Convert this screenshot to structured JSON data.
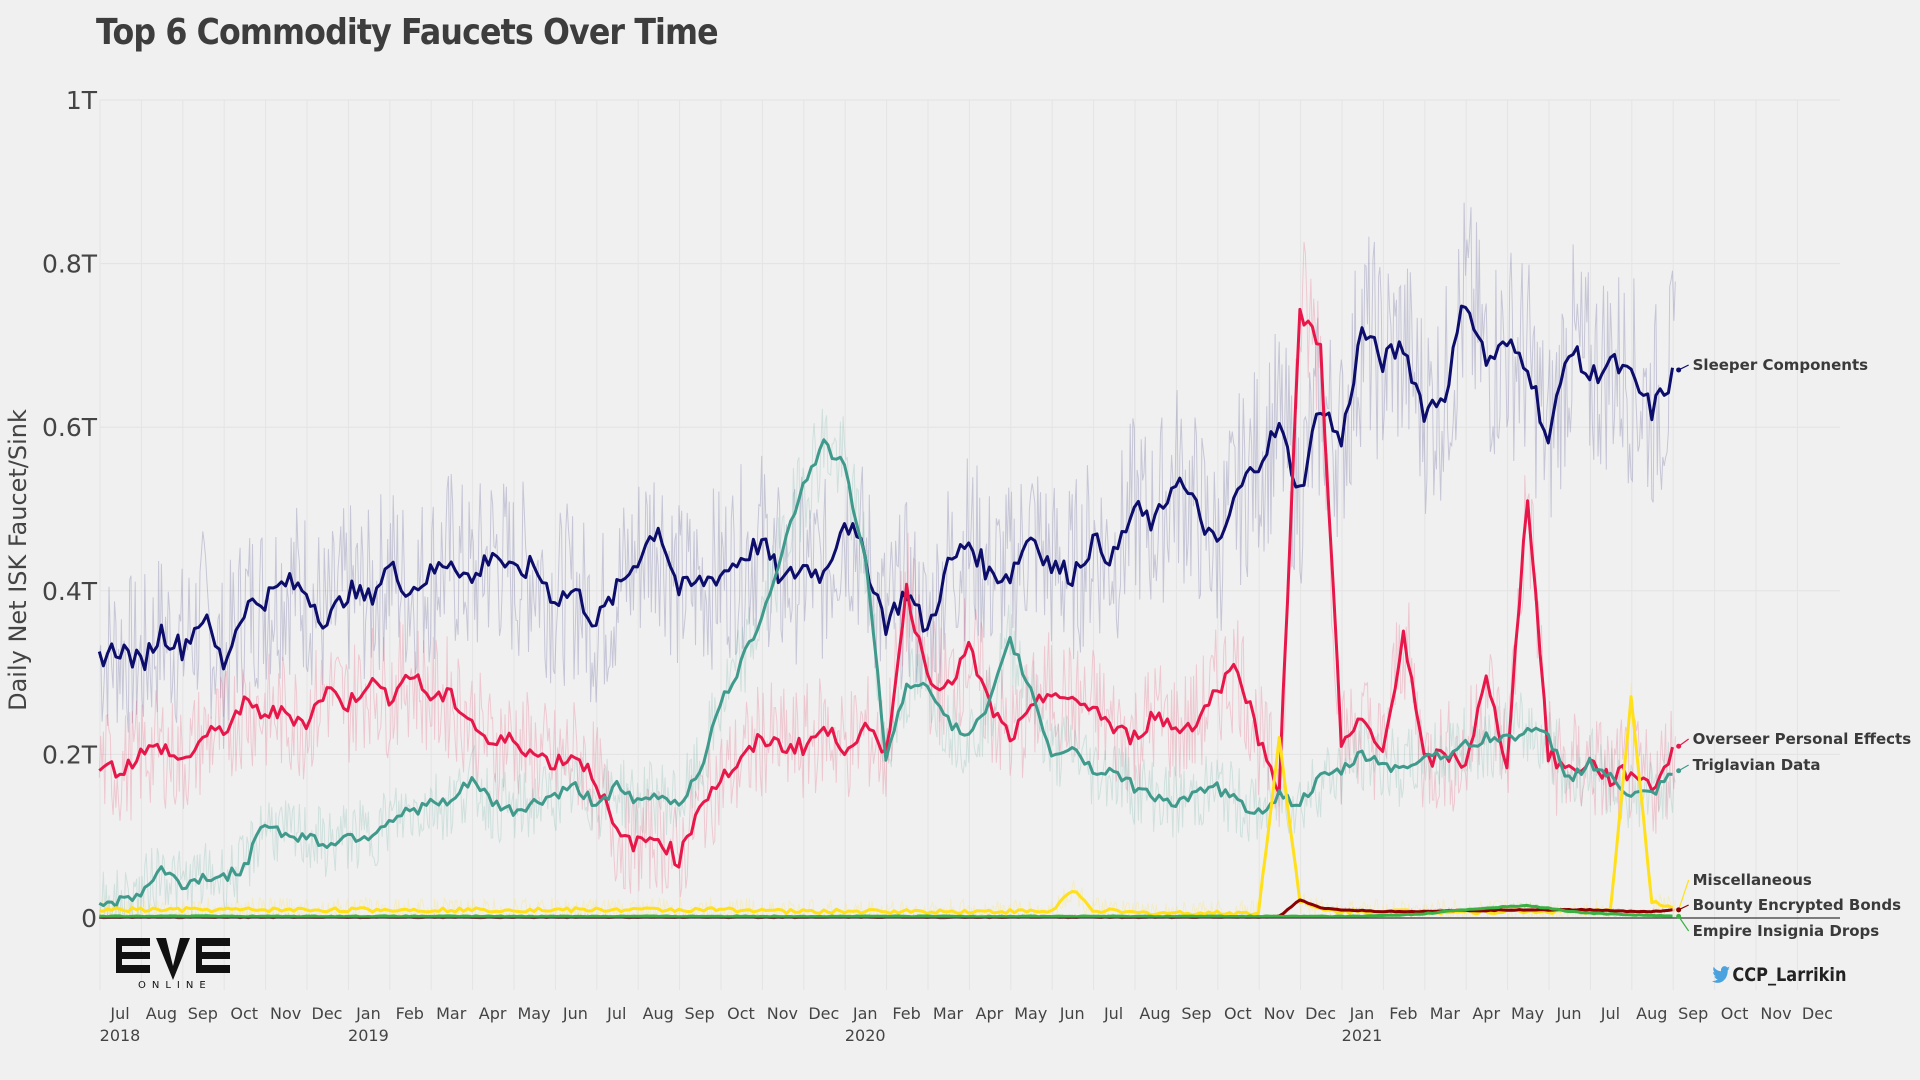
{
  "chart_data": {
    "type": "line",
    "title": "Top 6 Commodity Faucets Over Time",
    "xlabel": "",
    "ylabel": "Daily Net ISK Faucet/Sink",
    "ylim": [
      0,
      1.0
    ],
    "yunit": "T",
    "yticks": [
      {
        "value": 0,
        "label": "0"
      },
      {
        "value": 0.2,
        "label": "0.2T"
      },
      {
        "value": 0.4,
        "label": "0.4T"
      },
      {
        "value": 0.6,
        "label": "0.6T"
      },
      {
        "value": 0.8,
        "label": "0.8T"
      },
      {
        "value": 1.0,
        "label": "1T"
      }
    ],
    "xrange": [
      "2018-06-15",
      "2021-12-31"
    ],
    "xticks": [
      "Jul",
      "Aug",
      "Sep",
      "Oct",
      "Nov",
      "Dec",
      "Jan",
      "Feb",
      "Mar",
      "Apr",
      "May",
      "Jun",
      "Jul",
      "Aug",
      "Sep",
      "Oct",
      "Nov",
      "Dec",
      "Jan",
      "Feb",
      "Mar",
      "Apr",
      "May",
      "Jun",
      "Jul",
      "Aug",
      "Sep",
      "Oct",
      "Nov",
      "Dec",
      "Jan",
      "Feb",
      "Mar",
      "Apr",
      "May",
      "Jun",
      "Jul",
      "Aug",
      "Sep",
      "Oct",
      "Nov",
      "Dec"
    ],
    "year_labels": [
      {
        "label": "2018",
        "month_index": 0
      },
      {
        "label": "2019",
        "month_index": 6
      },
      {
        "label": "2020",
        "month_index": 18
      },
      {
        "label": "2021",
        "month_index": 30
      }
    ],
    "grid": true,
    "legend": "direct-labels-right",
    "x_months_from_jul_2018": [
      -0.5,
      0,
      0.5,
      1,
      1.5,
      2,
      2.5,
      3,
      3.5,
      4,
      4.5,
      5,
      5.5,
      6,
      6.5,
      7,
      7.5,
      8,
      8.5,
      9,
      9.5,
      10,
      10.5,
      11,
      11.5,
      12,
      12.5,
      13,
      13.5,
      14,
      14.5,
      15,
      15.5,
      16,
      16.5,
      17,
      17.5,
      18,
      18.5,
      19,
      19.5,
      20,
      20.5,
      21,
      21.5,
      22,
      22.5,
      23,
      23.5,
      24,
      24.5,
      25,
      25.5,
      26,
      26.5,
      27,
      27.5,
      28,
      28.5,
      29,
      29.5,
      30,
      30.5,
      31,
      31.5,
      32,
      32.5,
      33,
      33.5,
      34,
      34.5,
      35,
      35.5,
      36,
      36.5,
      37,
      37.6
    ],
    "series": [
      {
        "name": "Sleeper Components",
        "color": "#0d0d6b",
        "values": [
          0.32,
          0.33,
          0.31,
          0.35,
          0.33,
          0.37,
          0.31,
          0.38,
          0.39,
          0.41,
          0.4,
          0.36,
          0.4,
          0.39,
          0.43,
          0.4,
          0.42,
          0.44,
          0.41,
          0.45,
          0.42,
          0.43,
          0.39,
          0.4,
          0.36,
          0.4,
          0.44,
          0.48,
          0.4,
          0.41,
          0.42,
          0.44,
          0.46,
          0.41,
          0.43,
          0.42,
          0.49,
          0.44,
          0.36,
          0.4,
          0.35,
          0.43,
          0.46,
          0.42,
          0.42,
          0.47,
          0.43,
          0.42,
          0.46,
          0.44,
          0.5,
          0.48,
          0.54,
          0.5,
          0.45,
          0.52,
          0.56,
          0.6,
          0.52,
          0.63,
          0.58,
          0.72,
          0.68,
          0.7,
          0.62,
          0.64,
          0.76,
          0.68,
          0.7,
          0.68,
          0.58,
          0.7,
          0.66,
          0.68,
          0.66,
          0.62,
          0.67
        ]
      },
      {
        "name": "Overseer Personal Effects",
        "color": "#e8174a",
        "values": [
          0.19,
          0.18,
          0.2,
          0.21,
          0.19,
          0.22,
          0.23,
          0.26,
          0.25,
          0.25,
          0.24,
          0.28,
          0.26,
          0.29,
          0.27,
          0.3,
          0.27,
          0.27,
          0.24,
          0.21,
          0.22,
          0.2,
          0.19,
          0.2,
          0.17,
          0.1,
          0.09,
          0.1,
          0.07,
          0.14,
          0.17,
          0.19,
          0.22,
          0.21,
          0.21,
          0.23,
          0.21,
          0.23,
          0.2,
          0.4,
          0.3,
          0.28,
          0.33,
          0.26,
          0.22,
          0.25,
          0.28,
          0.26,
          0.26,
          0.23,
          0.22,
          0.25,
          0.23,
          0.24,
          0.28,
          0.31,
          0.22,
          0.16,
          0.74,
          0.7,
          0.21,
          0.24,
          0.2,
          0.35,
          0.19,
          0.2,
          0.19,
          0.29,
          0.19,
          0.52,
          0.2,
          0.18,
          0.19,
          0.17,
          0.18,
          0.16,
          0.21
        ]
      },
      {
        "name": "Triglavian Data",
        "color": "#3f9a8c",
        "values": [
          0.02,
          0.02,
          0.03,
          0.06,
          0.04,
          0.05,
          0.05,
          0.06,
          0.12,
          0.1,
          0.1,
          0.09,
          0.1,
          0.1,
          0.12,
          0.13,
          0.14,
          0.14,
          0.17,
          0.14,
          0.13,
          0.14,
          0.15,
          0.16,
          0.14,
          0.16,
          0.14,
          0.15,
          0.14,
          0.18,
          0.26,
          0.31,
          0.37,
          0.45,
          0.53,
          0.58,
          0.55,
          0.44,
          0.2,
          0.28,
          0.29,
          0.24,
          0.22,
          0.26,
          0.34,
          0.28,
          0.2,
          0.21,
          0.18,
          0.18,
          0.16,
          0.15,
          0.14,
          0.15,
          0.16,
          0.14,
          0.13,
          0.15,
          0.14,
          0.17,
          0.18,
          0.2,
          0.19,
          0.18,
          0.2,
          0.2,
          0.21,
          0.22,
          0.22,
          0.23,
          0.22,
          0.17,
          0.19,
          0.17,
          0.15,
          0.15,
          0.18
        ]
      },
      {
        "name": "Miscellaneous",
        "color": "#ffe01a",
        "values": [
          0.01,
          0.01,
          0.01,
          0.01,
          0.01,
          0.01,
          0.01,
          0.01,
          0.01,
          0.01,
          0.01,
          0.01,
          0.01,
          0.01,
          0.01,
          0.01,
          0.01,
          0.01,
          0.01,
          0.01,
          0.01,
          0.01,
          0.01,
          0.01,
          0.01,
          0.01,
          0.01,
          0.01,
          0.01,
          0.01,
          0.01,
          0.01,
          0.01,
          0.008,
          0.008,
          0.008,
          0.008,
          0.008,
          0.008,
          0.008,
          0.008,
          0.008,
          0.008,
          0.008,
          0.008,
          0.008,
          0.008,
          0.035,
          0.01,
          0.008,
          0.006,
          0.006,
          0.006,
          0.006,
          0.006,
          0.006,
          0.006,
          0.22,
          0.02,
          0.01,
          0.008,
          0.008,
          0.008,
          0.008,
          0.008,
          0.008,
          0.008,
          0.008,
          0.008,
          0.008,
          0.008,
          0.008,
          0.008,
          0.008,
          0.27,
          0.02,
          0.01
        ]
      },
      {
        "name": "Bounty Encrypted Bonds",
        "color": "#8b0000",
        "values": [
          0.001,
          0.001,
          0.001,
          0.001,
          0.001,
          0.001,
          0.001,
          0.001,
          0.001,
          0.001,
          0.001,
          0.001,
          0.001,
          0.001,
          0.001,
          0.001,
          0.001,
          0.001,
          0.001,
          0.001,
          0.001,
          0.001,
          0.001,
          0.001,
          0.001,
          0.001,
          0.001,
          0.001,
          0.001,
          0.001,
          0.001,
          0.001,
          0.001,
          0.001,
          0.001,
          0.001,
          0.001,
          0.001,
          0.001,
          0.001,
          0.001,
          0.001,
          0.001,
          0.001,
          0.001,
          0.001,
          0.001,
          0.001,
          0.001,
          0.001,
          0.001,
          0.001,
          0.001,
          0.001,
          0.001,
          0.001,
          0.001,
          0.002,
          0.022,
          0.012,
          0.01,
          0.009,
          0.008,
          0.008,
          0.008,
          0.009,
          0.009,
          0.009,
          0.01,
          0.01,
          0.01,
          0.01,
          0.01,
          0.009,
          0.008,
          0.008,
          0.01
        ]
      },
      {
        "name": "Empire Insignia Drops",
        "color": "#3cb043",
        "values": [
          0.002,
          0.002,
          0.002,
          0.002,
          0.002,
          0.003,
          0.002,
          0.002,
          0.002,
          0.002,
          0.002,
          0.002,
          0.002,
          0.002,
          0.002,
          0.002,
          0.002,
          0.002,
          0.002,
          0.002,
          0.002,
          0.002,
          0.002,
          0.002,
          0.002,
          0.002,
          0.002,
          0.002,
          0.002,
          0.002,
          0.002,
          0.002,
          0.002,
          0.002,
          0.002,
          0.002,
          0.002,
          0.002,
          0.002,
          0.002,
          0.002,
          0.002,
          0.002,
          0.002,
          0.002,
          0.002,
          0.002,
          0.002,
          0.002,
          0.002,
          0.002,
          0.002,
          0.002,
          0.002,
          0.002,
          0.002,
          0.002,
          0.002,
          0.002,
          0.002,
          0.002,
          0.002,
          0.003,
          0.004,
          0.005,
          0.008,
          0.01,
          0.012,
          0.014,
          0.015,
          0.012,
          0.008,
          0.006,
          0.005,
          0.004,
          0.003,
          0.002
        ]
      }
    ]
  },
  "legend_labels": [
    "Sleeper Components",
    "Overseer Personal Effects",
    "Triglavian Data",
    "Miscellaneous",
    "Bounty Encrypted Bonds",
    "Empire Insignia Drops"
  ],
  "branding": {
    "logo_text": "EVE",
    "logo_subtext": "ONLINE",
    "twitter_handle": "CCP_Larrikin",
    "twitter_icon": "twitter-bird-icon",
    "twitter_color": "#4aa3df"
  }
}
